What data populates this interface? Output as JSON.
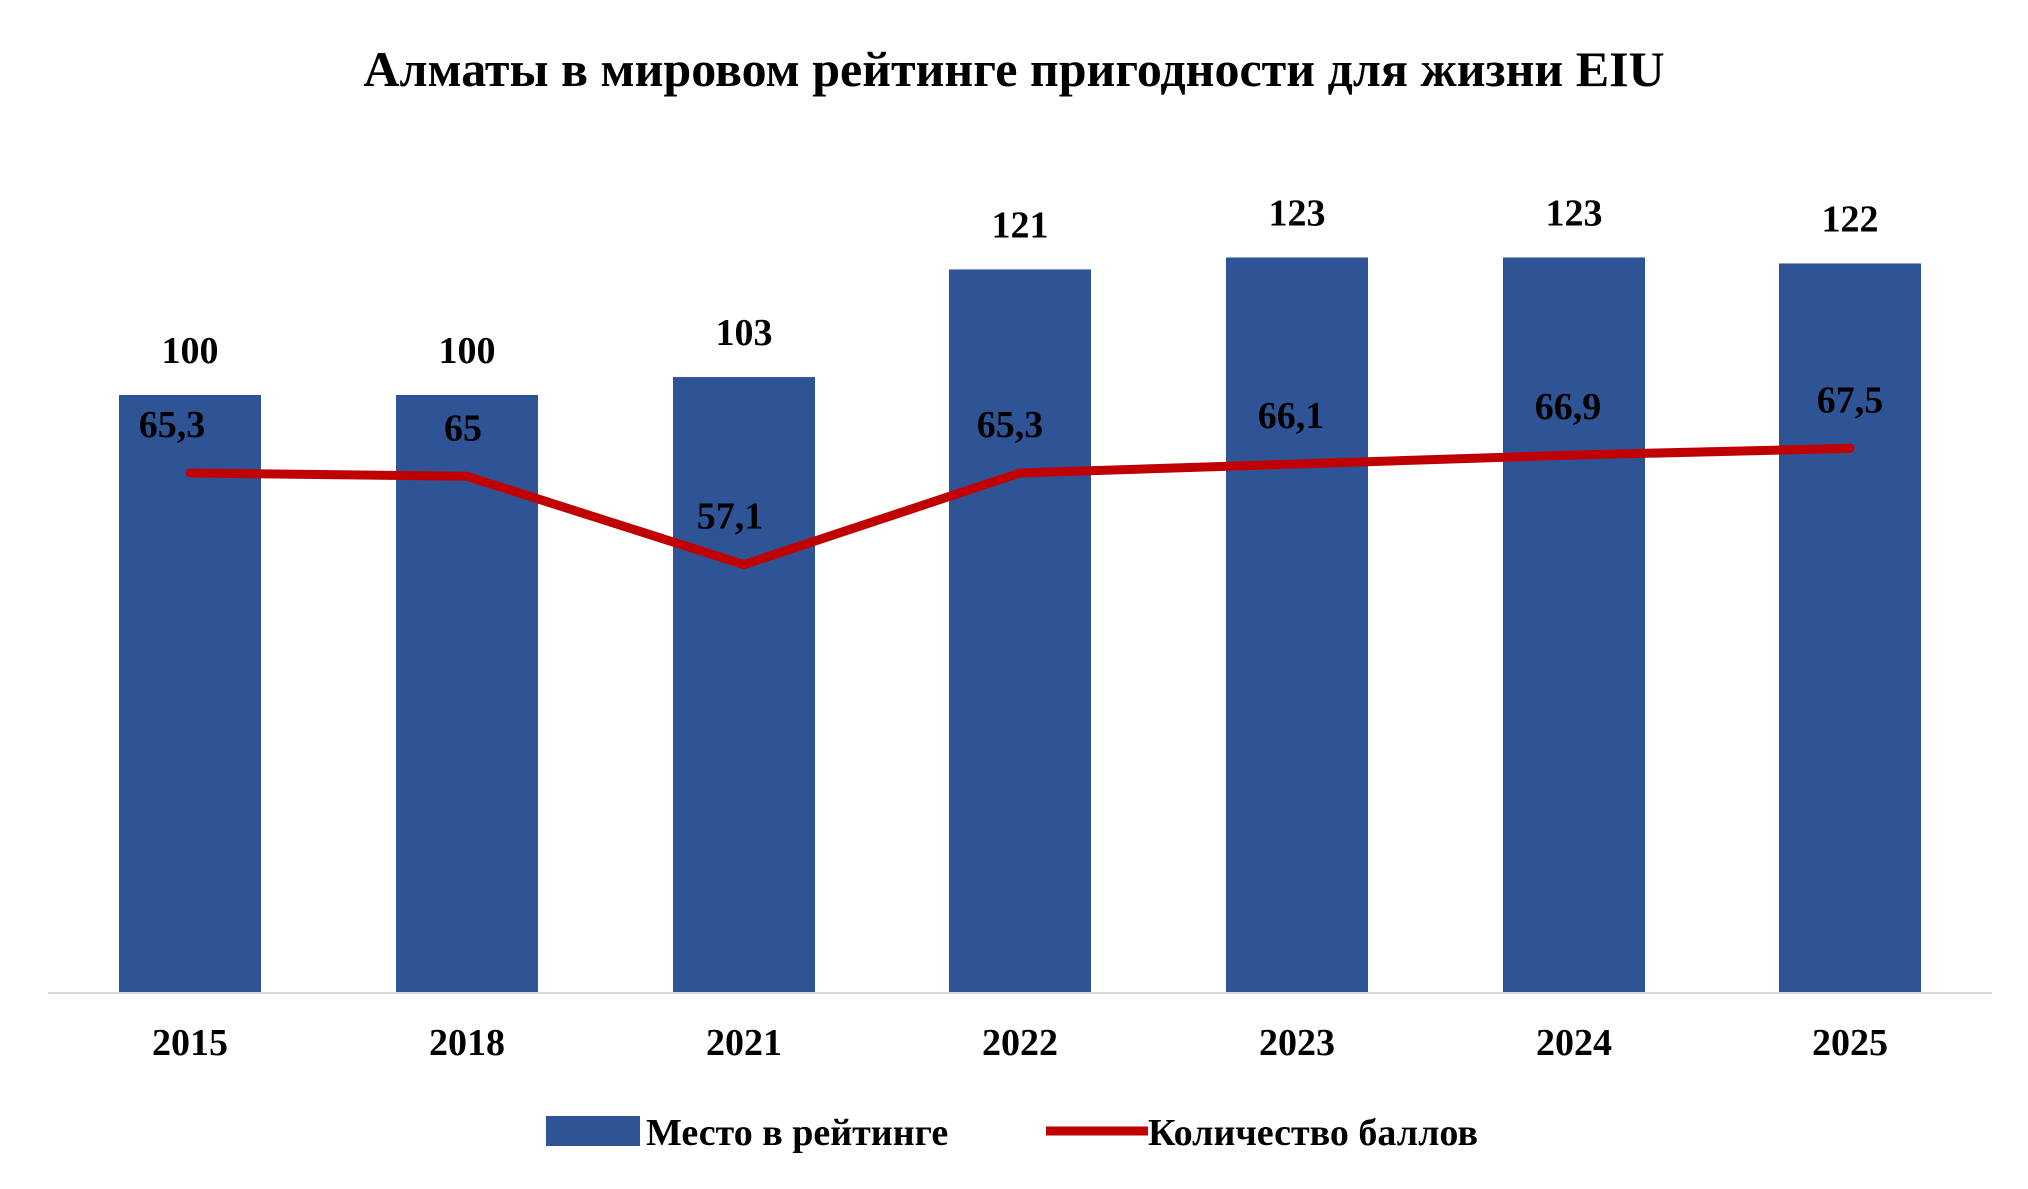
{
  "chart_data": {
    "type": "bar",
    "title": "Алматы в мировом рейтинге пригодности для жизни EIU",
    "categories": [
      "2015",
      "2018",
      "2021",
      "2022",
      "2023",
      "2024",
      "2025"
    ],
    "series": [
      {
        "name": "Место в рейтинге",
        "type": "bar",
        "axis": "primary",
        "color": "#2F5496",
        "values": [
          100,
          100,
          103,
          121,
          123,
          123,
          122
        ],
        "labels": [
          "100",
          "100",
          "103",
          "121",
          "123",
          "123",
          "122"
        ]
      },
      {
        "name": "Количество баллов",
        "type": "line",
        "axis": "secondary",
        "color": "#C00000",
        "values": [
          65.3,
          65,
          57.1,
          65.3,
          66.1,
          66.9,
          67.5
        ],
        "labels": [
          "65,3",
          "65",
          "57,1",
          "65,3",
          "66,1",
          "66,9",
          "67,5"
        ]
      }
    ],
    "ylim": [
      0,
      130
    ],
    "y2lim": [
      0,
      130
    ],
    "xlabel": "",
    "ylabel": "",
    "grid": false,
    "legend_position": "bottom"
  }
}
